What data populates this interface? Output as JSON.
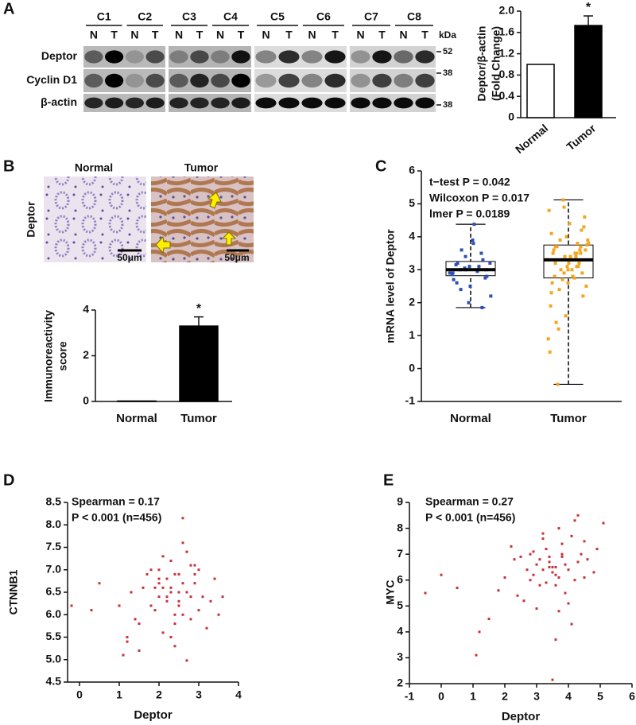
{
  "panel_labels": [
    "A",
    "B",
    "C",
    "D",
    "E"
  ],
  "blot": {
    "columns": [
      "C1",
      "C2",
      "C3",
      "C4",
      "C5",
      "C6",
      "C7",
      "C8"
    ],
    "lanes": [
      "N",
      "T"
    ],
    "rows": [
      "Deptor",
      "Cyclin D1",
      "β-actin"
    ],
    "unit": "kDa",
    "markers": [
      "52",
      "38",
      "38"
    ]
  },
  "ihc": {
    "stain": "Deptor",
    "groups": [
      "Normal",
      "Tumor"
    ],
    "scale_bar": "50μm"
  },
  "chart_data": [
    {
      "type": "bar",
      "ylabel": [
        "Deptor/β-actin",
        "(Fold Change)"
      ],
      "categories": [
        "Normal",
        "Tumor"
      ],
      "values": [
        1,
        1.73
      ],
      "errors": [
        0,
        0.18
      ],
      "colors": [
        "#ffffff",
        "#000000"
      ],
      "annotation": "*",
      "ylim": [
        0,
        2
      ],
      "yticks": [
        0,
        0.4,
        0.8,
        1.2,
        1.6,
        {
          "value": 2,
          "label": "2.0"
        }
      ]
    },
    {
      "type": "bar",
      "ylabel": [
        "Immunoreactivity",
        "score"
      ],
      "categories": [
        "Normal",
        "Tumor"
      ],
      "values": [
        0.02,
        3.3
      ],
      "errors": [
        0,
        0.4
      ],
      "colors": [
        "#ffffff",
        "#000000"
      ],
      "annotation": "*",
      "ylim": [
        0,
        4
      ],
      "yticks": [
        0,
        2,
        4
      ]
    },
    {
      "type": "box",
      "ylabel": "mRNA level of Deptor",
      "categories": [
        "Normal",
        "Tumor"
      ],
      "annotations": [
        "t−test P = 0.042",
        "Wilcoxon P = 0.017",
        "lmer P = 0.0189"
      ],
      "ylim": [
        -1,
        6
      ],
      "yticks": [
        -1,
        0,
        1,
        2,
        3,
        4,
        5,
        6
      ],
      "boxes": [
        {
          "whisker_low": 1.85,
          "q1": 2.82,
          "median": 3.0,
          "q3": 3.25,
          "whisker_high": 4.38
        },
        {
          "whisker_low": -0.48,
          "q1": 2.75,
          "median": 3.3,
          "q3": 3.75,
          "whisker_high": 5.12
        }
      ],
      "point_colors": [
        "#2e4fb5",
        "#f2a51e"
      ],
      "points": [
        [
          2.9,
          3.1,
          3.0,
          2.7,
          3.3,
          2.5,
          3.2,
          2.8,
          4.38,
          3.6,
          2.2,
          3.0,
          3.4,
          2.9,
          1.85,
          3.1,
          2.6,
          3.0,
          3.8,
          2.4,
          3.2,
          2.95,
          3.05,
          2.85,
          3.5,
          2.0,
          3.15,
          2.75,
          3.9,
          3.0
        ],
        [
          3.3,
          3.5,
          2.9,
          4.1,
          3.7,
          2.6,
          3.2,
          4.6,
          3.0,
          2.4,
          3.8,
          3.4,
          5.12,
          1.9,
          3.6,
          3.1,
          2.8,
          4.3,
          3.3,
          1.2,
          3.9,
          3.5,
          2.7,
          0.5,
          3.2,
          4.0,
          3.6,
          2.2,
          3.4,
          -0.48,
          3.75,
          2.75,
          3.3,
          4.8,
          3.1,
          1.6,
          3.5,
          2.9,
          4.4,
          3.7,
          2.5,
          3.3,
          3.0,
          0.9,
          3.8,
          3.4,
          2.6,
          4.2,
          3.2,
          1.4,
          3.6,
          2.8,
          3.9,
          3.3,
          3.1,
          4.9,
          2.3,
          3.5,
          3.0,
          3.7
        ]
      ]
    },
    {
      "type": "scatter",
      "xlabel": "Deptor",
      "ylabel": "CTNNB1",
      "annotations": [
        "Spearman = 0.17",
        "P < 0.001 (n=456)"
      ],
      "color": "#c8303c",
      "xlim": [
        -0.3,
        4
      ],
      "xticks": [
        0,
        1,
        2,
        3,
        4
      ],
      "ylim": [
        4.5,
        8.5
      ],
      "yticks": [
        4.5,
        {
          "value": 5,
          "label": "5.0"
        },
        5.5,
        {
          "value": 6,
          "label": "6.0"
        },
        6.5,
        {
          "value": 7,
          "label": "7.0"
        },
        7.5,
        {
          "value": 8,
          "label": "8.0"
        },
        8.5
      ],
      "x": [
        2.1,
        2.5,
        1.8,
        2.9,
        2.3,
        3.1,
        1.5,
        2.7,
        2.0,
        2.4,
        3.3,
        1.2,
        2.6,
        2.2,
        1.9,
        2.8,
        3.0,
        2.5,
        1.6,
        2.3,
        2.1,
        3.5,
        0.3,
        -0.2,
        1.1,
        2.4,
        2.7,
        1.4,
        2.0,
        2.9,
        3.2,
        2.2,
        1.7,
        2.6,
        2.4,
        1.3,
        2.8,
        2.0,
        3.4,
        2.5,
        1.9,
        2.3,
        2.6,
        1.0,
        2.1,
        3.0,
        2.7,
        2.4,
        1.8,
        2.2,
        0.5,
        2.5,
        2.9,
        1.5,
        2.3,
        3.6,
        2.6,
        2.0,
        1.2,
        2.8
      ],
      "y": [
        6.6,
        6.9,
        6.2,
        7.1,
        6.5,
        6.4,
        5.8,
        7.4,
        6.7,
        6.0,
        6.3,
        5.4,
        8.15,
        6.8,
        6.1,
        5.9,
        7.0,
        6.5,
        6.6,
        7.2,
        5.6,
        6.0,
        6.1,
        6.2,
        5.1,
        6.9,
        4.98,
        5.9,
        6.4,
        6.7,
        5.7,
        6.3,
        6.9,
        7.6,
        5.3,
        6.5,
        6.4,
        7.0,
        6.8,
        6.2,
        6.6,
        5.5,
        6.7,
        6.2,
        7.3,
        6.1,
        6.5,
        5.8,
        7.0,
        6.4,
        6.7,
        6.3,
        6.9,
        5.2,
        6.6,
        6.4,
        6.0,
        6.8,
        5.5,
        7.1
      ]
    },
    {
      "type": "scatter",
      "xlabel": "Deptor",
      "ylabel": "MYC",
      "annotations": [
        "Spearman = 0.27",
        "P < 0.001 (n=456)"
      ],
      "color": "#c8303c",
      "xlim": [
        -1,
        6
      ],
      "xticks": [
        -1,
        0,
        1,
        2,
        3,
        4,
        5,
        6
      ],
      "ylim": [
        2,
        9
      ],
      "yticks": [
        2,
        3,
        4,
        5,
        6,
        7,
        8,
        9
      ],
      "x": [
        3.4,
        3.8,
        2.9,
        4.2,
        3.1,
        3.6,
        2.5,
        4.0,
        3.3,
        2.8,
        4.5,
        3.5,
        3.0,
        3.9,
        2.2,
        4.3,
        3.7,
        3.2,
        2.6,
        4.8,
        3.4,
        1.1,
        1.8,
        0.5,
        -0.5,
        3.6,
        4.1,
        2.0,
        3.8,
        3.3,
        4.6,
        2.9,
        3.5,
        4.2,
        2.4,
        3.7,
        5.1,
        3.0,
        4.4,
        3.9,
        1.5,
        3.2,
        2.7,
        4.0,
        3.6,
        1.2,
        4.3,
        3.4,
        2.8,
        3.1,
        3.8,
        4.9,
        3.5,
        2.3,
        3.7,
        4.5,
        0.0,
        3.2,
        4.1,
        3.6
      ],
      "y": [
        6.5,
        7.0,
        6.2,
        8.3,
        6.8,
        5.8,
        6.9,
        6.4,
        7.2,
        6.0,
        7.5,
        2.15,
        6.6,
        5.5,
        7.3,
        6.7,
        6.1,
        7.8,
        5.2,
        6.3,
        6.9,
        3.1,
        5.6,
        5.7,
        5.5,
        6.5,
        4.3,
        6.1,
        7.4,
        5.9,
        6.8,
        7.1,
        6.3,
        6.0,
        5.4,
        8.0,
        8.2,
        4.9,
        7.0,
        6.6,
        4.5,
        7.6,
        6.4,
        5.1,
        6.2,
        4.0,
        8.5,
        6.7,
        7.0,
        5.8,
        6.9,
        7.2,
        6.5,
        6.8,
        4.8,
        6.1,
        6.2,
        6.4,
        7.7,
        3.7
      ]
    }
  ]
}
